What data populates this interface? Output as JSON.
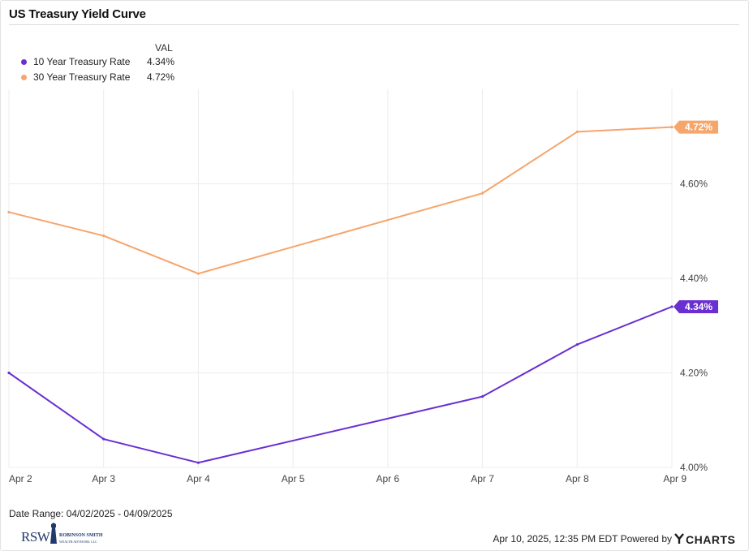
{
  "title": "US Treasury Yield Curve",
  "legend": {
    "header": "VAL",
    "items": [
      {
        "name": "10 Year Treasury Rate",
        "value": "4.34%",
        "color": "#6a2fd1"
      },
      {
        "name": "30 Year Treasury Rate",
        "value": "4.72%",
        "color": "#f6a56b"
      }
    ]
  },
  "chart_data": {
    "type": "line",
    "title": "US Treasury Yield Curve",
    "categories": [
      "Apr 2",
      "Apr 3",
      "Apr 4",
      "Apr 5",
      "Apr 6",
      "Apr 7",
      "Apr 8",
      "Apr 9"
    ],
    "series": [
      {
        "name": "10 Year Treasury Rate",
        "color": "#6a2fd1",
        "points": [
          [
            "Apr 2",
            4.2
          ],
          [
            "Apr 3",
            4.06
          ],
          [
            "Apr 4",
            4.01
          ],
          [
            "Apr 7",
            4.15
          ],
          [
            "Apr 8",
            4.26
          ],
          [
            "Apr 9",
            4.34
          ]
        ],
        "last_label": "4.34%"
      },
      {
        "name": "30 Year Treasury Rate",
        "color": "#f6a56b",
        "points": [
          [
            "Apr 2",
            4.54
          ],
          [
            "Apr 3",
            4.49
          ],
          [
            "Apr 4",
            4.41
          ],
          [
            "Apr 7",
            4.58
          ],
          [
            "Apr 8",
            4.71
          ],
          [
            "Apr 9",
            4.72
          ]
        ],
        "last_label": "4.72%"
      }
    ],
    "ylim": [
      4.0,
      4.8
    ],
    "yticks": [
      4.0,
      4.2,
      4.4,
      4.6
    ],
    "ytick_labels": [
      "4.00%",
      "4.20%",
      "4.40%",
      "4.60%"
    ],
    "y_axis_position": "right",
    "grid": true,
    "legend_position": "top-left"
  },
  "footer": {
    "date_range": "Date Range: 04/02/2025 - 04/09/2025",
    "timestamp": "Apr 10, 2025, 12:35 PM EDT Powered by",
    "brand": "YCHARTS",
    "logo_text": "RSW",
    "logo_name": "ROBINSON SMITH",
    "logo_sub": "WEALTH ADVISORS, LLC"
  }
}
